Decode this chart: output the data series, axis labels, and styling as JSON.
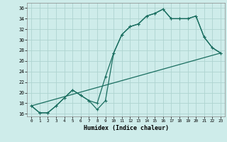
{
  "xlabel": "Humidex (Indice chaleur)",
  "bg_color": "#ceecea",
  "grid_color": "#aed4d0",
  "line_color": "#1a6e60",
  "xlim": [
    -0.5,
    23.5
  ],
  "ylim": [
    15.5,
    37.0
  ],
  "xticks": [
    0,
    1,
    2,
    3,
    4,
    5,
    6,
    7,
    8,
    9,
    10,
    11,
    12,
    13,
    14,
    15,
    16,
    17,
    18,
    19,
    20,
    21,
    22,
    23
  ],
  "yticks": [
    16,
    18,
    20,
    22,
    24,
    26,
    28,
    30,
    32,
    34,
    36
  ],
  "line1_x": [
    0,
    1,
    2,
    3,
    4,
    5,
    6,
    7,
    8,
    9,
    10,
    11,
    12,
    13,
    14,
    15,
    16,
    17,
    18,
    19,
    20,
    21,
    22,
    23
  ],
  "line1_y": [
    17.5,
    16.2,
    16.2,
    17.5,
    19.0,
    20.5,
    19.5,
    18.5,
    16.8,
    18.5,
    27.5,
    31.0,
    32.5,
    33.0,
    34.5,
    35.0,
    35.8,
    34.0,
    34.0,
    34.0,
    34.5,
    30.5,
    28.5,
    27.5
  ],
  "line2_x": [
    0,
    1,
    2,
    3,
    4,
    5,
    6,
    7,
    8,
    9,
    10,
    11,
    12,
    13,
    14,
    15,
    16,
    17,
    18,
    19,
    20,
    21,
    22,
    23
  ],
  "line2_y": [
    17.5,
    16.2,
    16.2,
    17.5,
    19.0,
    20.5,
    19.5,
    18.5,
    18.0,
    23.0,
    27.5,
    31.0,
    32.5,
    33.0,
    34.5,
    35.0,
    35.8,
    34.0,
    34.0,
    34.0,
    34.5,
    30.5,
    28.5,
    27.5
  ],
  "line3_x": [
    0,
    23
  ],
  "line3_y": [
    17.5,
    27.5
  ]
}
